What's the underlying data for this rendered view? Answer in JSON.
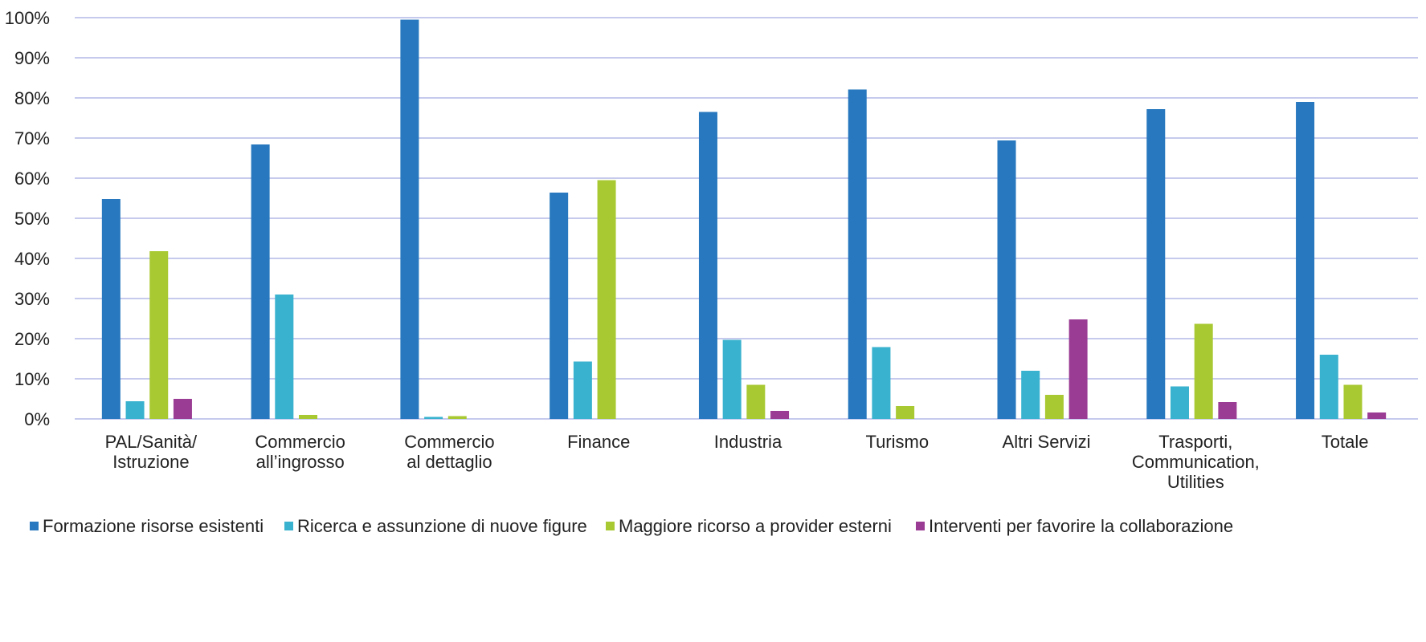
{
  "chart_data": {
    "type": "bar",
    "categories": [
      [
        "PAL/Sanità/",
        "Istruzione"
      ],
      [
        "Commercio",
        "all’ingrosso"
      ],
      [
        "Commercio",
        "al dettaglio"
      ],
      [
        "Finance"
      ],
      [
        "Industria"
      ],
      [
        "Turismo"
      ],
      [
        "Altri Servizi"
      ],
      [
        "Trasporti,",
        "Communication,",
        "Utilities"
      ],
      [
        "Totale"
      ]
    ],
    "series": [
      {
        "name": "Formazione risorse esistenti",
        "color": "#2778be",
        "values": [
          54.8,
          68.4,
          99.5,
          56.4,
          76.5,
          82.1,
          69.4,
          77.2,
          79.0
        ]
      },
      {
        "name": "Ricerca e assunzione di nuove figure",
        "color": "#38b2ce",
        "values": [
          4.4,
          31.0,
          0.5,
          14.3,
          19.7,
          17.9,
          12.0,
          8.1,
          16.0
        ]
      },
      {
        "name": "Maggiore ricorso a provider esterni",
        "color": "#a9c933",
        "values": [
          41.8,
          1.0,
          0.7,
          59.5,
          8.5,
          3.2,
          6.0,
          23.7,
          8.5
        ]
      },
      {
        "name": "Interventi per favorire la collaborazione",
        "color": "#9b3c94",
        "values": [
          5.0,
          0,
          0,
          0,
          2.0,
          0,
          24.8,
          4.2,
          1.6
        ]
      }
    ],
    "ylim": [
      0,
      100
    ],
    "yticks": [
      "0%",
      "10%",
      "20%",
      "30%",
      "40%",
      "50%",
      "60%",
      "70%",
      "80%",
      "90%",
      "100%"
    ],
    "grid": true,
    "grid_color": "#b4b8e6",
    "legend_position": "bottom"
  }
}
